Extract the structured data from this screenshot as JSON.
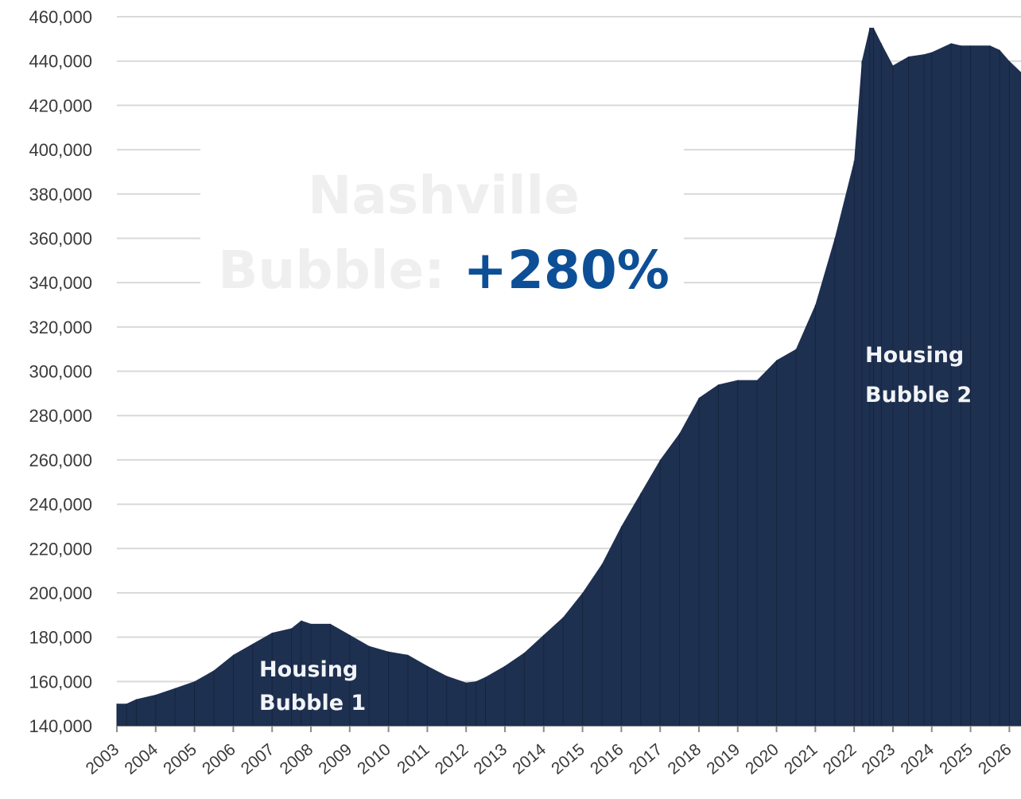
{
  "colors": {
    "bar": "#1e3050",
    "grid": "#d9d9d9",
    "headline_gray": "#efefef",
    "headline_accent": "#0d4f96",
    "annotation_text": "#f2f4f7"
  },
  "headline": {
    "line1": "Nashville",
    "line2_prefix": "Bubble: ",
    "line2_value": "+280%"
  },
  "annotations": {
    "bubble1_line1": "Housing",
    "bubble1_line2": "Bubble 1",
    "bubble2_line1": "Housing",
    "bubble2_line2": "Bubble 2"
  },
  "chart_data": {
    "type": "area",
    "title": "",
    "xlabel": "",
    "ylabel": "",
    "ylim": [
      140000,
      460000
    ],
    "grid": true,
    "legend": "none",
    "y_ticks": [
      "140,000",
      "160,000",
      "180,000",
      "200,000",
      "220,000",
      "240,000",
      "260,000",
      "280,000",
      "300,000",
      "320,000",
      "340,000",
      "360,000",
      "380,000",
      "400,000",
      "420,000",
      "440,000",
      "460,000"
    ],
    "x_ticks": [
      "2003",
      "2004",
      "2005",
      "2006",
      "2007",
      "2008",
      "2009",
      "2010",
      "2011",
      "2012",
      "2013",
      "2014",
      "2015",
      "2016",
      "2017",
      "2018",
      "2019",
      "2020",
      "2021",
      "2022",
      "2023",
      "2024",
      "2025",
      "2026"
    ],
    "x": [
      2003.0,
      2003.25,
      2003.5,
      2004.0,
      2004.5,
      2005.0,
      2005.5,
      2006.0,
      2006.5,
      2007.0,
      2007.5,
      2007.75,
      2008.0,
      2008.5,
      2009.0,
      2009.5,
      2010.0,
      2010.5,
      2011.0,
      2011.5,
      2012.0,
      2012.25,
      2012.5,
      2013.0,
      2013.5,
      2014.0,
      2014.5,
      2015.0,
      2015.5,
      2016.0,
      2016.5,
      2017.0,
      2017.5,
      2018.0,
      2018.5,
      2019.0,
      2019.5,
      2020.0,
      2020.5,
      2021.0,
      2021.5,
      2022.0,
      2022.2,
      2022.4,
      2022.5,
      2022.7,
      2023.0,
      2023.4,
      2023.8,
      2024.0,
      2024.5,
      2024.75,
      2025.0,
      2025.5,
      2025.75,
      2026.0,
      2026.3
    ],
    "values": [
      150000,
      150000,
      152000,
      154000,
      157000,
      160000,
      165000,
      172000,
      177000,
      182000,
      184000,
      187500,
      186000,
      186000,
      181000,
      176000,
      173500,
      172000,
      167000,
      162500,
      159500,
      160000,
      162000,
      167000,
      173000,
      181000,
      189000,
      200000,
      213000,
      230000,
      245000,
      260000,
      272000,
      288000,
      294000,
      296000,
      296000,
      305000,
      310000,
      330000,
      360000,
      395000,
      440000,
      455000,
      455000,
      448000,
      438000,
      442000,
      443000,
      444000,
      448000,
      447000,
      447000,
      447000,
      445000,
      440000,
      435000
    ]
  }
}
